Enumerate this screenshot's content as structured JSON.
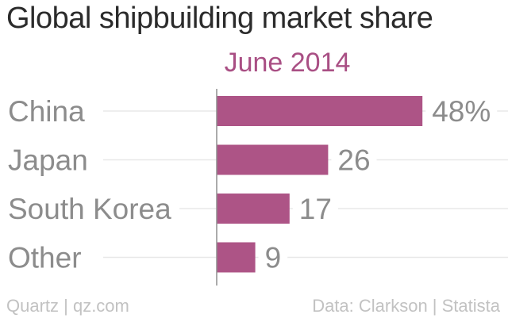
{
  "header": {
    "title": "Global shipbuilding market share"
  },
  "chart_data": {
    "type": "bar",
    "orientation": "horizontal",
    "subtitle": "June 2014",
    "categories": [
      "China",
      "Japan",
      "South Korea",
      "Other"
    ],
    "values": [
      48,
      26,
      17,
      9
    ],
    "value_labels": [
      "48%",
      "26",
      "17",
      "9"
    ],
    "unit": "%",
    "xlim": [
      0,
      50
    ],
    "grid": true,
    "colors": {
      "bar": "#ad5486",
      "subtitle": "#a94f84",
      "grid": "#e8e8e8",
      "axis": "#8f8f8f",
      "label": "#8c8c8c"
    }
  },
  "footer": {
    "source_left": "Quartz | qz.com",
    "source_right": "Data: Clarkson | Statista"
  }
}
